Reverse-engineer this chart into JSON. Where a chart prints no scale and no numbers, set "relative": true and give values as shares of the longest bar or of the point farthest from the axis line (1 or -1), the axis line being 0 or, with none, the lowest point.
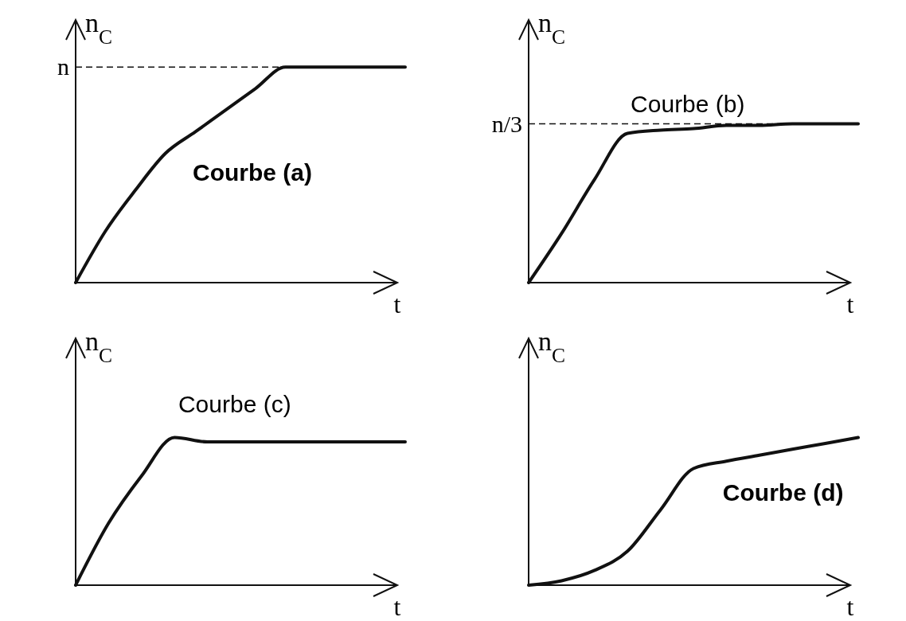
{
  "chart_data": [
    {
      "type": "line",
      "ylabel": "n$_{C}$",
      "xlabel": "t",
      "annotations": [
        "Courbe (a)"
      ],
      "relative": true,
      "categories": [
        null,
        null,
        null,
        null,
        null,
        null,
        null,
        null,
        null,
        null,
        null,
        null
      ],
      "series": [
        {
          "color": "#111111",
          "values": [
            0,
            0.24,
            0.43,
            0.6,
            0.7,
            0.8,
            0.9,
            1,
            1,
            1,
            1,
            1
          ]
        }
      ],
      "ref_lines": [
        {
          "axis": "y",
          "value": 1,
          "label": "n",
          "line_style": "dashed"
        }
      ]
    },
    {
      "type": "line",
      "ylabel": "n$_{C}$",
      "xlabel": "t",
      "annotations": [
        "Courbe (b)"
      ],
      "relative": true,
      "categories": [
        null,
        null,
        null,
        null,
        null,
        null,
        null,
        null,
        null,
        null,
        null
      ],
      "series": [
        {
          "color": "#111111",
          "values": [
            0,
            0.31,
            0.65,
            0.94,
            0.96,
            0.97,
            0.99,
            0.99,
            1,
            1,
            1
          ]
        }
      ],
      "ref_lines": [
        {
          "axis": "y",
          "value": 1,
          "label": "n/3",
          "line_style": "dashed"
        }
      ]
    },
    {
      "type": "line",
      "ylabel": "n$_{C}$",
      "xlabel": "t",
      "annotations": [
        "Courbe  (c)"
      ],
      "relative": true,
      "categories": [
        null,
        null,
        null,
        null,
        null,
        null,
        null,
        null,
        null,
        null,
        null
      ],
      "series": [
        {
          "color": "#111111",
          "values": [
            0,
            0.42,
            0.74,
            1,
            0.97,
            0.97,
            0.97,
            0.97,
            0.97,
            0.97,
            0.97
          ]
        }
      ]
    },
    {
      "type": "line",
      "ylabel": "n$_{C}$",
      "xlabel": "t",
      "annotations": [
        "Courbe (d)"
      ],
      "relative": true,
      "categories": [
        null,
        null,
        null,
        null,
        null,
        null,
        null,
        null,
        null,
        null,
        null
      ],
      "series": [
        {
          "color": "#111111",
          "values": [
            0,
            0.03,
            0.1,
            0.23,
            0.51,
            0.79,
            0.84,
            0.88,
            0.92,
            0.96,
            1
          ]
        }
      ]
    }
  ]
}
